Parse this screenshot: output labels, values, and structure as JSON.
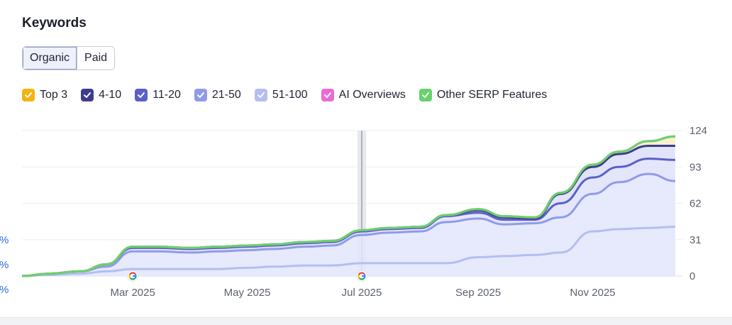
{
  "title": "Keywords",
  "tabs": [
    {
      "label": "Organic",
      "active": true
    },
    {
      "label": "Paid",
      "active": false
    }
  ],
  "legend": [
    {
      "label": "Top 3",
      "color": "#f5b312",
      "checked": true
    },
    {
      "label": "4-10",
      "color": "#3d3b8f",
      "checked": true
    },
    {
      "label": "11-20",
      "color": "#5b5fc9",
      "checked": true
    },
    {
      "label": "21-50",
      "color": "#8f9be8",
      "checked": true
    },
    {
      "label": "51-100",
      "color": "#b3bef2",
      "checked": true
    },
    {
      "label": "AI Overviews",
      "color": "#e96bd6",
      "checked": true
    },
    {
      "label": "Other SERP Features",
      "color": "#67d36b",
      "checked": true
    }
  ],
  "left_edge_labels": [
    "%",
    "%",
    "%"
  ],
  "chart_data": {
    "type": "area",
    "stacked": true,
    "y_ticks": [
      0,
      31,
      62,
      93,
      124
    ],
    "ylim": [
      0,
      124
    ],
    "y_axis_side": "right",
    "x_tick_labels": [
      "Mar 2025",
      "May 2025",
      "Jul 2025",
      "Sep 2025",
      "Nov 2025"
    ],
    "x_tick_dates": [
      "2025-03-01",
      "2025-05-01",
      "2025-07-01",
      "2025-09-01",
      "2025-11-01"
    ],
    "x": [
      "2025-01-01",
      "2025-01-15",
      "2025-02-01",
      "2025-02-15",
      "2025-03-01",
      "2025-03-15",
      "2025-04-01",
      "2025-04-15",
      "2025-05-01",
      "2025-05-15",
      "2025-06-01",
      "2025-06-15",
      "2025-07-01",
      "2025-07-15",
      "2025-08-01",
      "2025-08-15",
      "2025-09-01",
      "2025-09-15",
      "2025-10-01",
      "2025-10-15",
      "2025-11-01",
      "2025-11-15",
      "2025-12-01",
      "2025-12-15"
    ],
    "series": [
      {
        "name": "51-100",
        "color": "#b3bef2",
        "values": [
          0,
          1,
          2,
          4,
          6,
          6,
          6,
          6,
          7,
          8,
          9,
          9,
          11,
          11,
          11,
          11,
          16,
          17,
          18,
          20,
          38,
          40,
          41,
          42
        ]
      },
      {
        "name": "21-50",
        "color": "#8f9be8",
        "values": [
          0,
          1,
          2,
          4,
          15,
          15,
          14,
          15,
          15,
          15,
          16,
          17,
          24,
          26,
          27,
          35,
          33,
          27,
          27,
          30,
          32,
          40,
          46,
          39
        ]
      },
      {
        "name": "11-20",
        "color": "#5b5fc9",
        "values": [
          0,
          0,
          0,
          2,
          3,
          3,
          3,
          3,
          3,
          3,
          3,
          3,
          3,
          3,
          3,
          5,
          5,
          4,
          3,
          12,
          14,
          13,
          13,
          18
        ]
      },
      {
        "name": "4-10",
        "color": "#3d3b8f",
        "values": [
          0,
          0,
          0,
          0,
          1,
          1,
          1,
          1,
          1,
          1,
          1,
          1,
          1,
          1,
          1,
          1,
          2,
          2,
          1,
          8,
          9,
          11,
          11,
          12
        ]
      },
      {
        "name": "Top 3",
        "color": "#f5b312",
        "values": [
          0,
          0,
          0,
          0,
          0,
          0,
          0,
          0,
          0,
          0,
          0,
          0,
          0,
          0,
          0,
          0,
          1,
          1,
          1,
          1,
          2,
          2,
          4,
          8
        ]
      },
      {
        "name": "AI Overviews",
        "color": "#e96bd6",
        "values": [
          0,
          0,
          0,
          0,
          0,
          0,
          0,
          0,
          0,
          0,
          0,
          0,
          0,
          0,
          0,
          0,
          0,
          0,
          0,
          0,
          0,
          0,
          0,
          0
        ]
      },
      {
        "name": "Other SERP Features",
        "color": "#67d36b",
        "values": [
          0,
          0,
          0,
          0,
          0,
          0,
          0,
          0,
          0,
          0,
          0,
          0,
          0,
          0,
          0,
          0,
          0,
          0,
          0,
          0,
          0,
          0,
          0,
          0
        ]
      }
    ],
    "highlight_date": "2025-07-01",
    "event_markers": [
      {
        "date": "2025-03-01",
        "icon": "google-icon"
      },
      {
        "date": "2025-07-01",
        "icon": "google-icon"
      }
    ],
    "grid": true,
    "legend_position": "top"
  }
}
